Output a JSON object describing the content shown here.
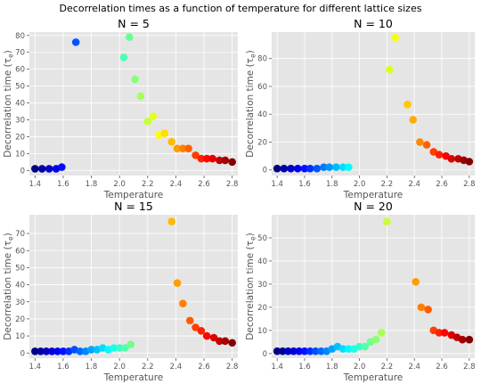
{
  "chart_data": {
    "suptitle": "Decorrelation times as a function of temperature for different lattice sizes",
    "type": "scatter",
    "style": "ggplot",
    "grid": true,
    "colormap": "jet",
    "color_encodes": "temperature",
    "panels": [
      {
        "title": "N = 5",
        "xlabel": "Temperature",
        "ylabel": "Decorrelation time (τ",
        "ylabel_sub": "e",
        "ylabel_end": ")",
        "xlim": [
          1.36,
          2.84
        ],
        "ylim": [
          -3,
          82
        ],
        "xticks": [
          "1.4",
          "1.6",
          "1.8",
          "2.0",
          "2.2",
          "2.4",
          "2.6",
          "2.8"
        ],
        "yticks": [
          "0",
          "10",
          "20",
          "30",
          "40",
          "50",
          "60",
          "70",
          "80"
        ],
        "x": [
          1.4,
          1.45,
          1.5,
          1.55,
          1.59,
          1.69,
          2.03,
          2.07,
          2.11,
          2.15,
          2.2,
          2.24,
          2.28,
          2.32,
          2.37,
          2.41,
          2.45,
          2.49,
          2.54,
          2.58,
          2.62,
          2.66,
          2.71,
          2.75,
          2.8
        ],
        "y": [
          1,
          1,
          1,
          1,
          2,
          76,
          67,
          79,
          54,
          44,
          29,
          32,
          21,
          22,
          17,
          13,
          13,
          13,
          9,
          7,
          7,
          7,
          6,
          6,
          5
        ]
      },
      {
        "title": "N = 10",
        "xlabel": "Temperature",
        "ylabel": "Decorrelation time (τ",
        "ylabel_sub": "e",
        "ylabel_end": ")",
        "xlim": [
          1.36,
          2.84
        ],
        "ylim": [
          -4,
          99
        ],
        "xticks": [
          "1.4",
          "1.6",
          "1.8",
          "2.0",
          "2.2",
          "2.4",
          "2.6",
          "2.8"
        ],
        "yticks": [
          "0",
          "20",
          "40",
          "60",
          "80"
        ],
        "x": [
          1.4,
          1.45,
          1.5,
          1.55,
          1.6,
          1.64,
          1.69,
          1.74,
          1.78,
          1.83,
          1.88,
          1.92,
          2.22,
          2.26,
          2.35,
          2.39,
          2.44,
          2.49,
          2.54,
          2.58,
          2.63,
          2.67,
          2.72,
          2.76,
          2.8
        ],
        "y": [
          1,
          1,
          1,
          1,
          1,
          1,
          1,
          2,
          2,
          2,
          2,
          2,
          72,
          95,
          47,
          36,
          20,
          18,
          13,
          11,
          10,
          8,
          8,
          7,
          6
        ]
      },
      {
        "title": "N = 15",
        "xlabel": "Temperature",
        "ylabel": "Decorrelation time (τ",
        "ylabel_sub": "e",
        "ylabel_end": ")",
        "xlim": [
          1.36,
          2.84
        ],
        "ylim": [
          -3,
          81
        ],
        "xticks": [
          "1.4",
          "1.6",
          "1.8",
          "2.0",
          "2.2",
          "2.4",
          "2.6",
          "2.8"
        ],
        "yticks": [
          "0",
          "10",
          "20",
          "30",
          "40",
          "50",
          "60",
          "70"
        ],
        "x": [
          1.4,
          1.44,
          1.48,
          1.52,
          1.56,
          1.6,
          1.64,
          1.68,
          1.72,
          1.76,
          1.8,
          1.84,
          1.88,
          1.92,
          1.96,
          2.0,
          2.04,
          2.08,
          2.37,
          2.41,
          2.45,
          2.5,
          2.54,
          2.58,
          2.62,
          2.67,
          2.71,
          2.75,
          2.8
        ],
        "y": [
          1,
          1,
          1,
          1,
          1,
          1,
          1,
          2,
          1,
          1,
          2,
          2,
          3,
          2,
          3,
          3,
          3,
          5,
          77,
          41,
          29,
          19,
          15,
          13,
          10,
          9,
          7,
          7,
          6
        ]
      },
      {
        "title": "N = 20",
        "xlabel": "Temperature",
        "ylabel": "Decorrelation time (τ",
        "ylabel_sub": "e",
        "ylabel_end": ")",
        "xlim": [
          1.36,
          2.84
        ],
        "ylim": [
          -2,
          60
        ],
        "xticks": [
          "1.4",
          "1.6",
          "1.8",
          "2.0",
          "2.2",
          "2.4",
          "2.6",
          "2.8"
        ],
        "yticks": [
          "0",
          "10",
          "20",
          "30",
          "40",
          "50"
        ],
        "x": [
          1.4,
          1.44,
          1.48,
          1.52,
          1.56,
          1.6,
          1.64,
          1.68,
          1.72,
          1.76,
          1.8,
          1.84,
          1.88,
          1.92,
          1.96,
          2.0,
          2.04,
          2.08,
          2.12,
          2.16,
          2.2,
          2.41,
          2.45,
          2.5,
          2.54,
          2.58,
          2.62,
          2.67,
          2.71,
          2.75,
          2.8
        ],
        "y": [
          1,
          1,
          1,
          1,
          1,
          1,
          1,
          1,
          1,
          1,
          2,
          3,
          2,
          2,
          2,
          3,
          3,
          5,
          6,
          9,
          57,
          31,
          20,
          19,
          10,
          9,
          9,
          8,
          7,
          6,
          6
        ]
      }
    ]
  }
}
